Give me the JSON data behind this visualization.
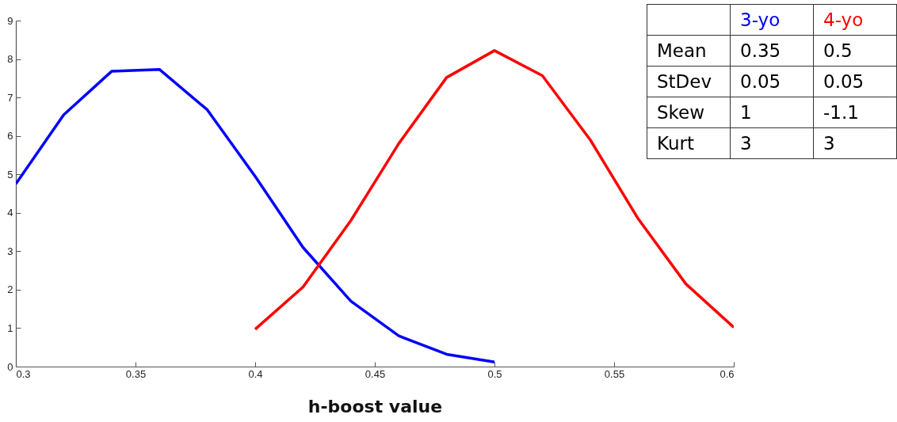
{
  "chart_data": {
    "type": "line",
    "xlabel": "h-boost value",
    "xlim": [
      0.3,
      0.6
    ],
    "xticks": [
      0.3,
      0.35,
      0.4,
      0.45,
      0.5,
      0.55,
      0.6
    ],
    "ylim": [
      0,
      9
    ],
    "yticks": [
      0,
      1,
      2,
      3,
      4,
      5,
      6,
      7,
      8,
      9
    ],
    "grid": false,
    "legend": "top right",
    "marker": "none",
    "line_style": "solid",
    "series": [
      {
        "name": "3-yo",
        "color": "#0000ff",
        "x": [
          0.3,
          0.32,
          0.34,
          0.36,
          0.38,
          0.4,
          0.42,
          0.44,
          0.46,
          0.48,
          0.5
        ],
        "values": [
          4.75,
          6.55,
          7.68,
          7.73,
          6.68,
          4.95,
          3.1,
          1.7,
          0.8,
          0.32,
          0.12
        ]
      },
      {
        "name": "4-yo",
        "color": "#ff0000",
        "x": [
          0.4,
          0.42,
          0.44,
          0.46,
          0.48,
          0.5,
          0.52,
          0.54,
          0.56,
          0.58,
          0.6
        ],
        "values": [
          0.97,
          2.07,
          3.8,
          5.8,
          7.52,
          8.22,
          7.57,
          5.9,
          3.85,
          2.15,
          1.02
        ]
      }
    ],
    "annotations": [
      "Mean",
      "0.35",
      "0.5",
      "StDev",
      "0.05",
      "0.05",
      "Skew",
      "1",
      "-1.1",
      "Kurt",
      "3",
      "3"
    ]
  }
}
